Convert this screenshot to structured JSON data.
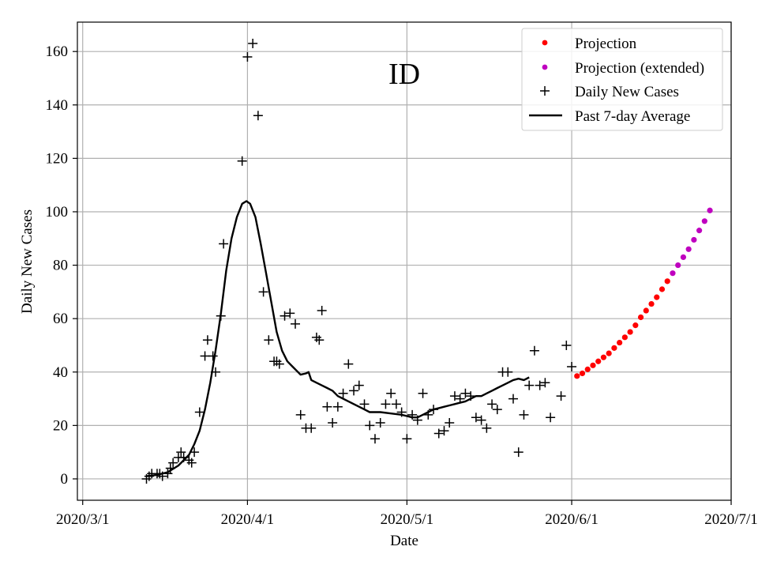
{
  "chart_data": {
    "type": "scatter",
    "title": "ID",
    "xlabel": "Date",
    "ylabel": "Daily New Cases",
    "xlim": [
      -1,
      122
    ],
    "ylim": [
      -8,
      171
    ],
    "grid": true,
    "legend_position": "top-right",
    "x_ticks": [
      {
        "day": 0,
        "label": "2020/3/1"
      },
      {
        "day": 31,
        "label": "2020/4/1"
      },
      {
        "day": 61,
        "label": "2020/5/1"
      },
      {
        "day": 92,
        "label": "2020/6/1"
      },
      {
        "day": 122,
        "label": "2020/7/1"
      }
    ],
    "y_ticks": [
      0,
      20,
      40,
      60,
      80,
      100,
      120,
      140,
      160
    ],
    "legend": [
      {
        "label": "Projection",
        "marker": "dot",
        "color": "#ff0000"
      },
      {
        "label": "Projection (extended)",
        "marker": "dot",
        "color": "#bf00bf"
      },
      {
        "label": "Daily New Cases",
        "marker": "plus",
        "color": "#000000"
      },
      {
        "label": "Past 7-day Average",
        "marker": "line",
        "color": "#000000"
      }
    ],
    "series": [
      {
        "name": "Daily New Cases",
        "marker": "plus",
        "color": "#000000",
        "points": [
          [
            12,
            0
          ],
          [
            12.5,
            1
          ],
          [
            13,
            2
          ],
          [
            14,
            2
          ],
          [
            14.5,
            2
          ],
          [
            15,
            1
          ],
          [
            16,
            2
          ],
          [
            16.5,
            4
          ],
          [
            17,
            6
          ],
          [
            18,
            8
          ],
          [
            18.5,
            10
          ],
          [
            19,
            8
          ],
          [
            20,
            7
          ],
          [
            20.5,
            6
          ],
          [
            21,
            10
          ],
          [
            22,
            25
          ],
          [
            23,
            46
          ],
          [
            23.5,
            52
          ],
          [
            24.5,
            46
          ],
          [
            25,
            40
          ],
          [
            26,
            61
          ],
          [
            26.5,
            88
          ],
          [
            30,
            119
          ],
          [
            31,
            158
          ],
          [
            32,
            163
          ],
          [
            33,
            136
          ],
          [
            34,
            70
          ],
          [
            35,
            52
          ],
          [
            36,
            44
          ],
          [
            36.5,
            44
          ],
          [
            37,
            43
          ],
          [
            38,
            61
          ],
          [
            39,
            62
          ],
          [
            40,
            58
          ],
          [
            41,
            24
          ],
          [
            42,
            19
          ],
          [
            43,
            19
          ],
          [
            44,
            53
          ],
          [
            44.5,
            52
          ],
          [
            45,
            63
          ],
          [
            46,
            27
          ],
          [
            47,
            21
          ],
          [
            48,
            27
          ],
          [
            49,
            32
          ],
          [
            50,
            43
          ],
          [
            51,
            33
          ],
          [
            52,
            35
          ],
          [
            53,
            28
          ],
          [
            54,
            20
          ],
          [
            55,
            15
          ],
          [
            56,
            21
          ],
          [
            57,
            28
          ],
          [
            58,
            32
          ],
          [
            59,
            28
          ],
          [
            60,
            25
          ],
          [
            61,
            15
          ],
          [
            62,
            24
          ],
          [
            63,
            22
          ],
          [
            64,
            32
          ],
          [
            65,
            24
          ],
          [
            66,
            26
          ],
          [
            67,
            17
          ],
          [
            68,
            18
          ],
          [
            69,
            21
          ],
          [
            70,
            31
          ],
          [
            71,
            30
          ],
          [
            72,
            32
          ],
          [
            73,
            31
          ],
          [
            74,
            23
          ],
          [
            75,
            22
          ],
          [
            76,
            19
          ],
          [
            77,
            28
          ],
          [
            78,
            26
          ],
          [
            79,
            40
          ],
          [
            80,
            40
          ],
          [
            81,
            30
          ],
          [
            82,
            10
          ],
          [
            83,
            24
          ],
          [
            84,
            35
          ],
          [
            85,
            48
          ],
          [
            86,
            35
          ],
          [
            87,
            36
          ],
          [
            88,
            23
          ],
          [
            90,
            31
          ],
          [
            91,
            50
          ],
          [
            92,
            42
          ]
        ]
      },
      {
        "name": "Past 7-day Average",
        "marker": "line",
        "color": "#000000",
        "points": [
          [
            12,
            1
          ],
          [
            14,
            1.5
          ],
          [
            16,
            2.5
          ],
          [
            18,
            5
          ],
          [
            20,
            9
          ],
          [
            21,
            13
          ],
          [
            22,
            18
          ],
          [
            23,
            26
          ],
          [
            24,
            36
          ],
          [
            25,
            48
          ],
          [
            26,
            62
          ],
          [
            27,
            78
          ],
          [
            28,
            90
          ],
          [
            29,
            98
          ],
          [
            30,
            103
          ],
          [
            30.8,
            104
          ],
          [
            31.5,
            103
          ],
          [
            32.5,
            98
          ],
          [
            33.5,
            88
          ],
          [
            34.5,
            77
          ],
          [
            35.5,
            66
          ],
          [
            36.5,
            55
          ],
          [
            37.5,
            48
          ],
          [
            38.5,
            44
          ],
          [
            39.5,
            42
          ],
          [
            40.5,
            40
          ],
          [
            41,
            39
          ],
          [
            42,
            39.5
          ],
          [
            42.5,
            40
          ],
          [
            43,
            37
          ],
          [
            44,
            36
          ],
          [
            45,
            35
          ],
          [
            46,
            34
          ],
          [
            47,
            33
          ],
          [
            48,
            31
          ],
          [
            49,
            30
          ],
          [
            50,
            29
          ],
          [
            51,
            28
          ],
          [
            52,
            27
          ],
          [
            53,
            26
          ],
          [
            54,
            25
          ],
          [
            56,
            25
          ],
          [
            58,
            24.5
          ],
          [
            60,
            24
          ],
          [
            61,
            23.5
          ],
          [
            62,
            23
          ],
          [
            63,
            23
          ],
          [
            64,
            24
          ],
          [
            65,
            25
          ],
          [
            66,
            26
          ],
          [
            67,
            26.5
          ],
          [
            68,
            27
          ],
          [
            69,
            27.5
          ],
          [
            70,
            28
          ],
          [
            71,
            28.5
          ],
          [
            72,
            29
          ],
          [
            73,
            30
          ],
          [
            74,
            31
          ],
          [
            75,
            31
          ],
          [
            76,
            32
          ],
          [
            77,
            33
          ],
          [
            78,
            34
          ],
          [
            79,
            35
          ],
          [
            80,
            36
          ],
          [
            81,
            37
          ],
          [
            82,
            37.5
          ],
          [
            83,
            37
          ],
          [
            84,
            38
          ]
        ]
      },
      {
        "name": "Projection",
        "marker": "dot",
        "color": "#ff0000",
        "points": [
          [
            93,
            38.5
          ],
          [
            94,
            39.5
          ],
          [
            95,
            41
          ],
          [
            96,
            42.5
          ],
          [
            97,
            44
          ],
          [
            98,
            45.5
          ],
          [
            99,
            47
          ],
          [
            100,
            49
          ],
          [
            101,
            51
          ],
          [
            102,
            53
          ],
          [
            103,
            55
          ],
          [
            104,
            57.5
          ],
          [
            105,
            60.5
          ],
          [
            106,
            63
          ],
          [
            107,
            65.5
          ],
          [
            108,
            68
          ],
          [
            109,
            71
          ],
          [
            110,
            74
          ]
        ]
      },
      {
        "name": "Projection (extended)",
        "marker": "dot",
        "color": "#bf00bf",
        "points": [
          [
            111,
            77
          ],
          [
            112,
            80
          ],
          [
            113,
            83
          ],
          [
            114,
            86
          ],
          [
            115,
            89.5
          ],
          [
            116,
            93
          ],
          [
            117,
            96.5
          ],
          [
            118,
            100.5
          ]
        ]
      }
    ]
  }
}
